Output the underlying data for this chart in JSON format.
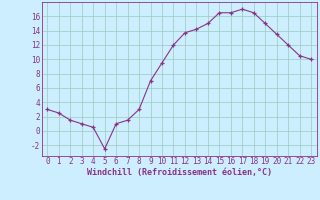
{
  "x": [
    0,
    1,
    2,
    3,
    4,
    5,
    6,
    7,
    8,
    9,
    10,
    11,
    12,
    13,
    14,
    15,
    16,
    17,
    18,
    19,
    20,
    21,
    22,
    23
  ],
  "y": [
    3.0,
    2.5,
    1.5,
    1.0,
    0.5,
    -2.5,
    1.0,
    1.5,
    3.0,
    7.0,
    9.5,
    12.0,
    13.7,
    14.2,
    15.0,
    16.5,
    16.5,
    17.0,
    16.5,
    15.0,
    13.5,
    12.0,
    10.5,
    10.0
  ],
  "xlabel": "Windchill (Refroidissement éolien,°C)",
  "ylim": [
    -3.5,
    18
  ],
  "xlim": [
    -0.5,
    23.5
  ],
  "yticks": [
    -2,
    0,
    2,
    4,
    6,
    8,
    10,
    12,
    14,
    16
  ],
  "xticks": [
    0,
    1,
    2,
    3,
    4,
    5,
    6,
    7,
    8,
    9,
    10,
    11,
    12,
    13,
    14,
    15,
    16,
    17,
    18,
    19,
    20,
    21,
    22,
    23
  ],
  "line_color": "#883388",
  "marker": "+",
  "bg_color": "#cceeff",
  "grid_color": "#99ccbb",
  "font_color": "#883388",
  "tick_fontsize": 5.5,
  "xlabel_fontsize": 6.0
}
